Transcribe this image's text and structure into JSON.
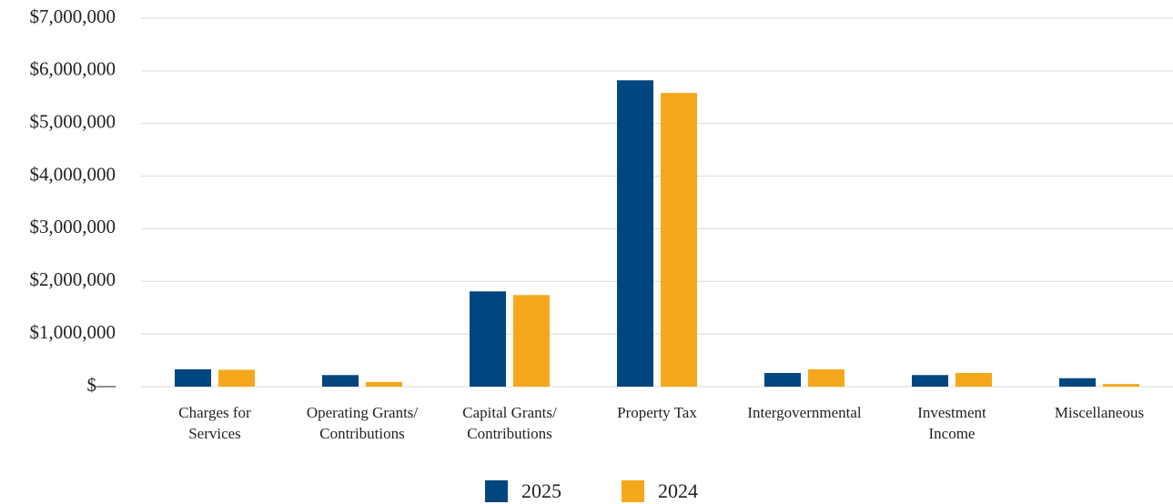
{
  "chart_data": {
    "type": "bar",
    "categories": [
      "Charges for\nServices",
      "Operating Grants/\nContributions",
      "Capital Grants/\nContributions",
      "Property Tax",
      "Intergovernmental",
      "Investment\nIncome",
      "Miscellaneous"
    ],
    "series": [
      {
        "name": "2025",
        "color": "#00467f",
        "values": [
          330000,
          220000,
          1810000,
          5820000,
          260000,
          220000,
          160000
        ]
      },
      {
        "name": "2024",
        "color": "#f5a81c",
        "values": [
          320000,
          90000,
          1740000,
          5580000,
          330000,
          260000,
          50000
        ]
      }
    ],
    "ylim": [
      0,
      7000000
    ],
    "yticks": [
      {
        "value": 0,
        "label": "$—"
      },
      {
        "value": 1000000,
        "label": "$1,000,000"
      },
      {
        "value": 2000000,
        "label": "$2,000,000"
      },
      {
        "value": 3000000,
        "label": "$3,000,000"
      },
      {
        "value": 4000000,
        "label": "$4,000,000"
      },
      {
        "value": 5000000,
        "label": "$5,000,000"
      },
      {
        "value": 6000000,
        "label": "$6,000,000"
      },
      {
        "value": 7000000,
        "label": "$7,000,000"
      }
    ],
    "grid": true,
    "legend": "bottom"
  }
}
